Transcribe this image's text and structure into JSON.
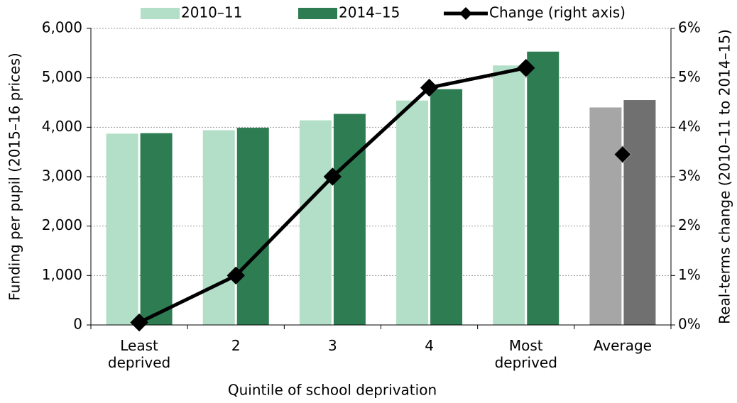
{
  "chart_data": {
    "type": "bar",
    "categories": [
      "Least deprived",
      "2",
      "3",
      "4",
      "Most deprived",
      "Average"
    ],
    "series": [
      {
        "name": "2010–11",
        "color": "#b3dfc8",
        "values": [
          3870,
          3940,
          4140,
          4540,
          5250,
          4400
        ]
      },
      {
        "name": "2014–15",
        "color": "#2e7d52",
        "values": [
          3880,
          3990,
          4270,
          4770,
          5530,
          4550
        ]
      },
      {
        "name": "Change (right axis)",
        "type": "line",
        "axis": "y2",
        "color": "#000000",
        "values": [
          0.05,
          1.0,
          3.0,
          4.8,
          5.2,
          3.45
        ]
      }
    ],
    "highlight": {
      "category": "Average",
      "colors": [
        "#a6a6a6",
        "#707070"
      ]
    },
    "xlabel": "Quintile of school deprivation",
    "ylabel": "Funding per pupil (2015–16 prices)",
    "y2label": "Real-terms change (2010–11 to 2014–15)",
    "ylim": [
      0,
      6000
    ],
    "yticks": [
      0,
      {
        "value": 1000,
        "label": "1,000"
      },
      {
        "value": 2000,
        "label": "2,000"
      },
      {
        "value": 3000,
        "label": "3,000"
      },
      {
        "value": 4000,
        "label": "4,000"
      },
      {
        "value": 5000,
        "label": "5,000"
      },
      {
        "value": 6000,
        "label": "6,000"
      }
    ],
    "y2lim": [
      0,
      6
    ],
    "y2ticks": [
      {
        "value": 0,
        "label": "0%"
      },
      {
        "value": 1,
        "label": "1%"
      },
      {
        "value": 2,
        "label": "2%"
      },
      {
        "value": 3,
        "label": "3%"
      },
      {
        "value": 4,
        "label": "4%"
      },
      {
        "value": 5,
        "label": "5%"
      },
      {
        "value": 6,
        "label": "6%"
      }
    ],
    "grid": true,
    "legend": "top"
  }
}
